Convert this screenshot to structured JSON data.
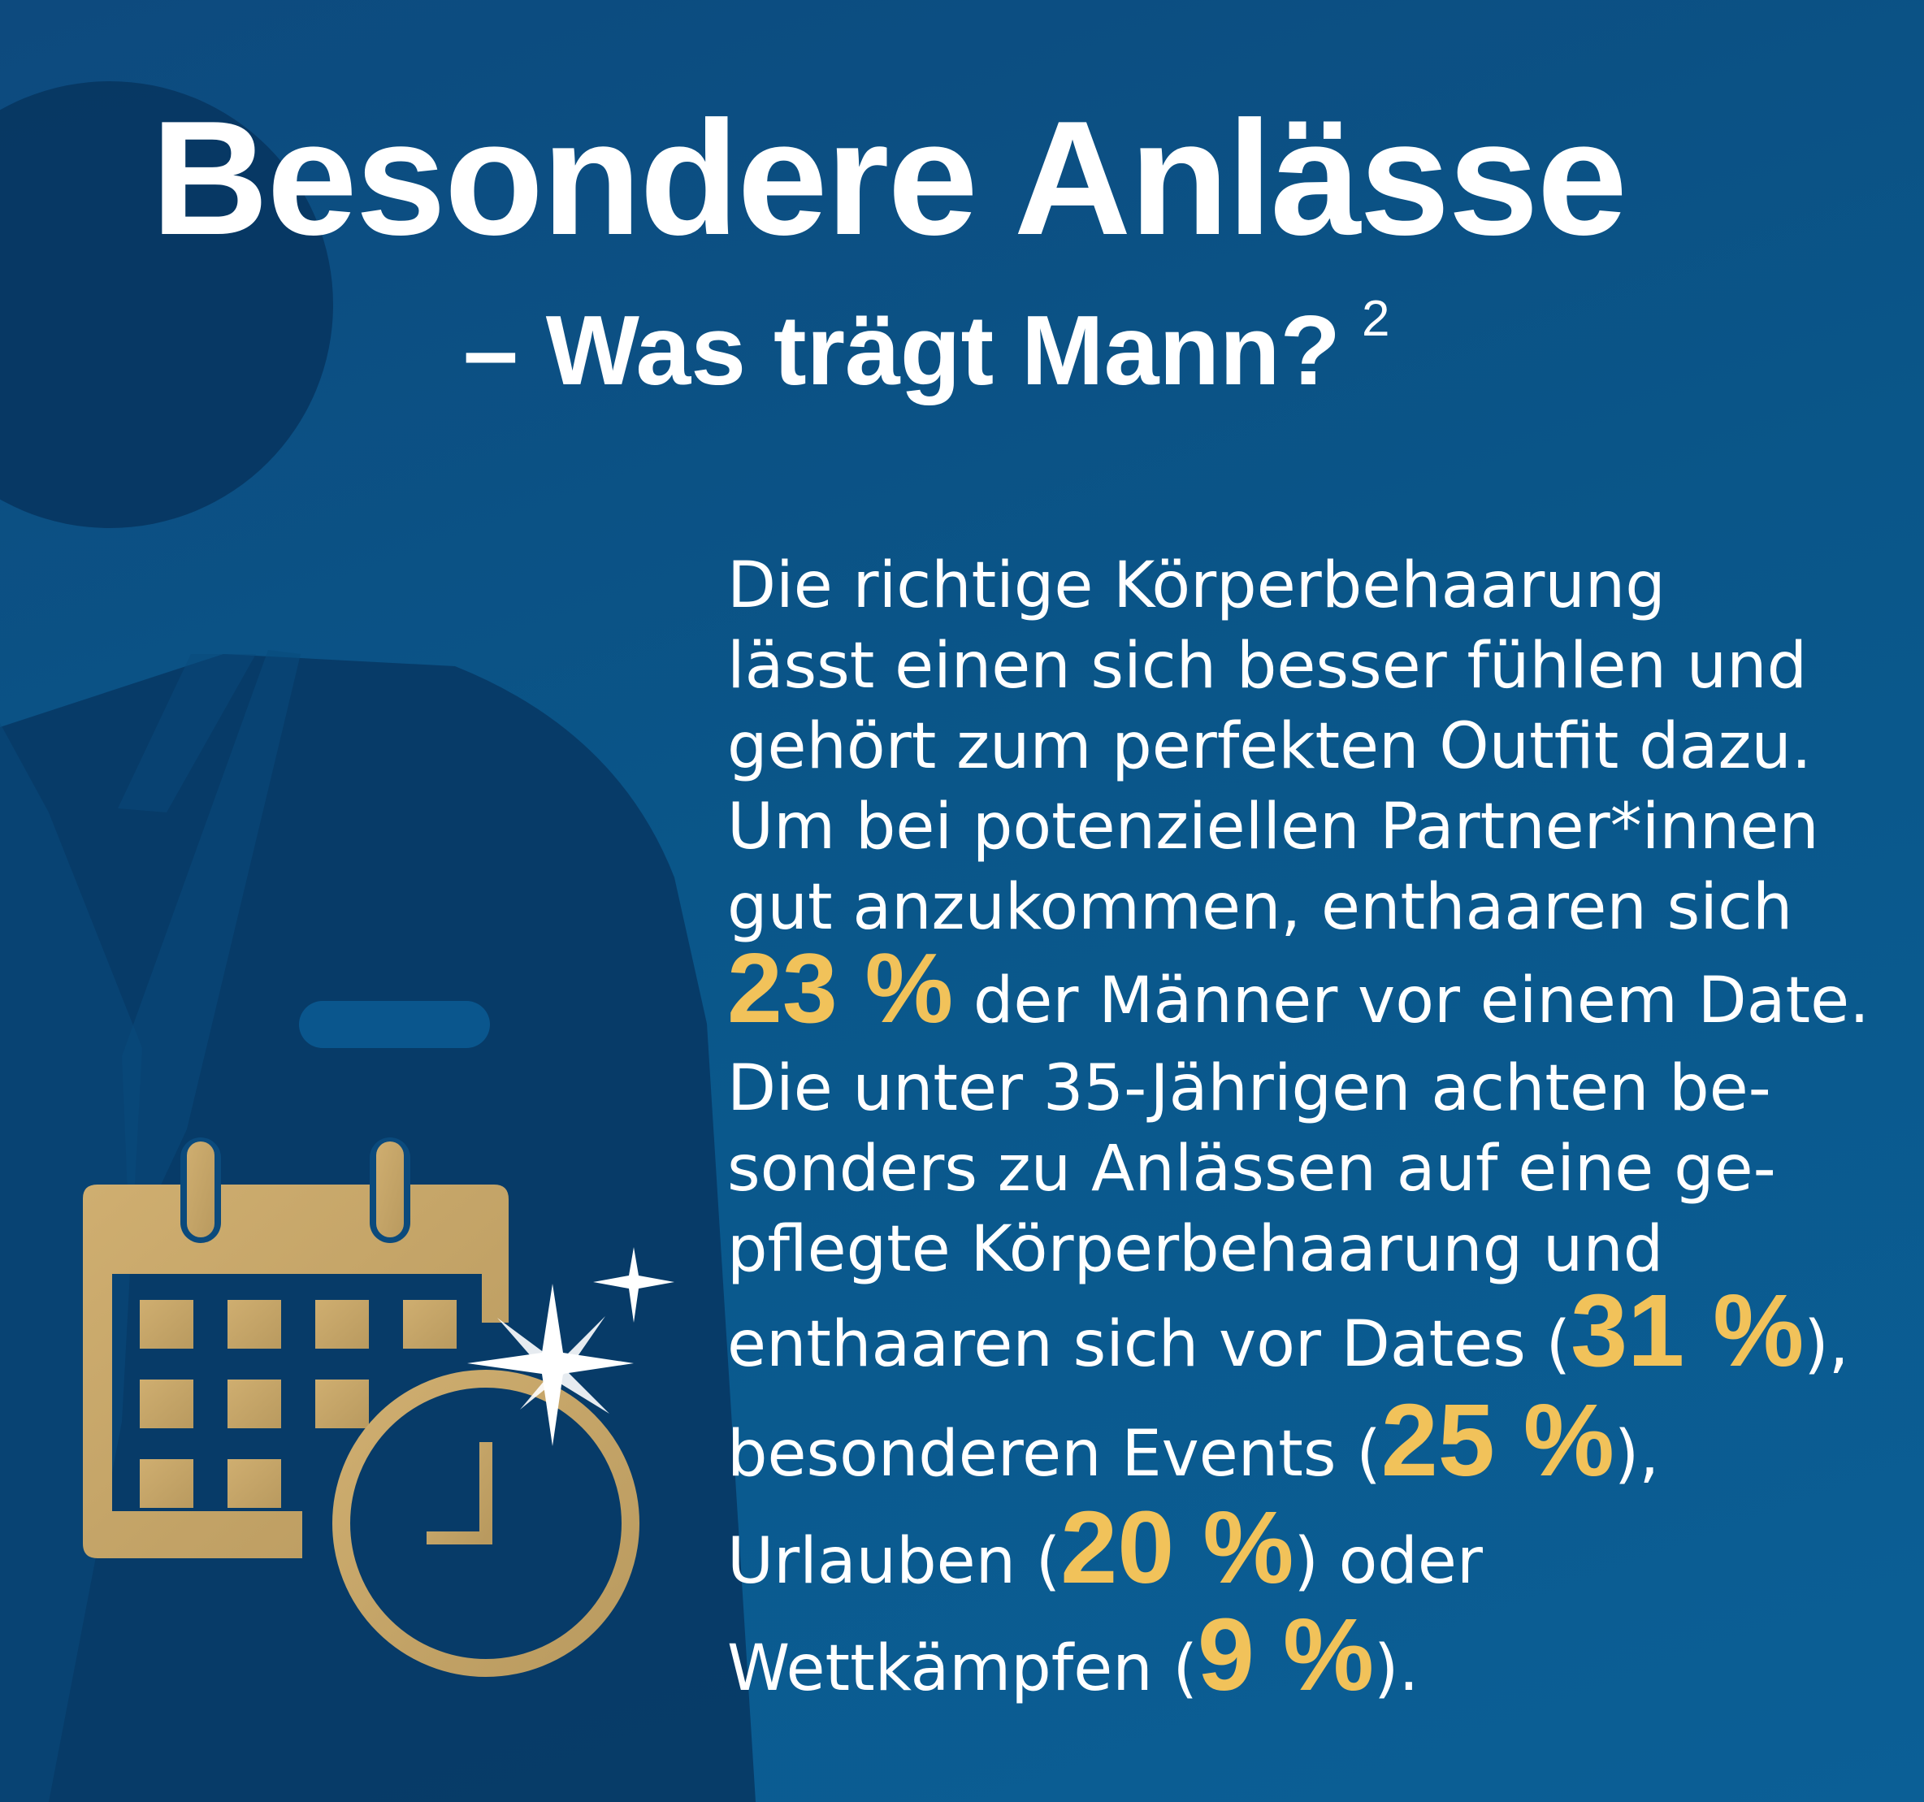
{
  "title": "Besondere Anlässe",
  "subtitle": "– Was trägt Mann?",
  "footnote_ref": "2",
  "paragraph": {
    "l1": "Die richtige Körperbehaarung",
    "l2": "lässt einen sich besser fühlen und",
    "l3": "gehört zum perfekten Outfit dazu.",
    "l4": "Um bei potenziellen Partner*innen",
    "l5": "gut anzukommen, enthaaren sich",
    "l6_pct": "23 %",
    "l6_rest": " der Männer vor einem Date.",
    "l7": "Die unter 35-Jährigen achten be-",
    "l8": "sonders zu Anlässen auf eine ge-",
    "l9": "pflegte Körperbehaarung und",
    "l10_pre": "enthaaren sich vor Dates (",
    "l10_pct": "31 %",
    "l10_post": "),",
    "l11_pre": "besonderen Events (",
    "l11_pct": "25 %",
    "l11_post": "),",
    "l12_pre": "Urlauben (",
    "l12_pct": "20 %",
    "l12_post": ") oder",
    "l13_pre": "Wettkämpfen (",
    "l13_pct": "9 %",
    "l13_post": ")."
  },
  "colors": {
    "background": "#0b5689",
    "silhouette": "#073a64",
    "accent_gold": "#f1c25a",
    "icon_gold": "#c7a56a",
    "text": "#ffffff"
  },
  "icons": [
    "person-silhouette",
    "calendar-icon",
    "clock-icon",
    "sparkle-icon"
  ]
}
